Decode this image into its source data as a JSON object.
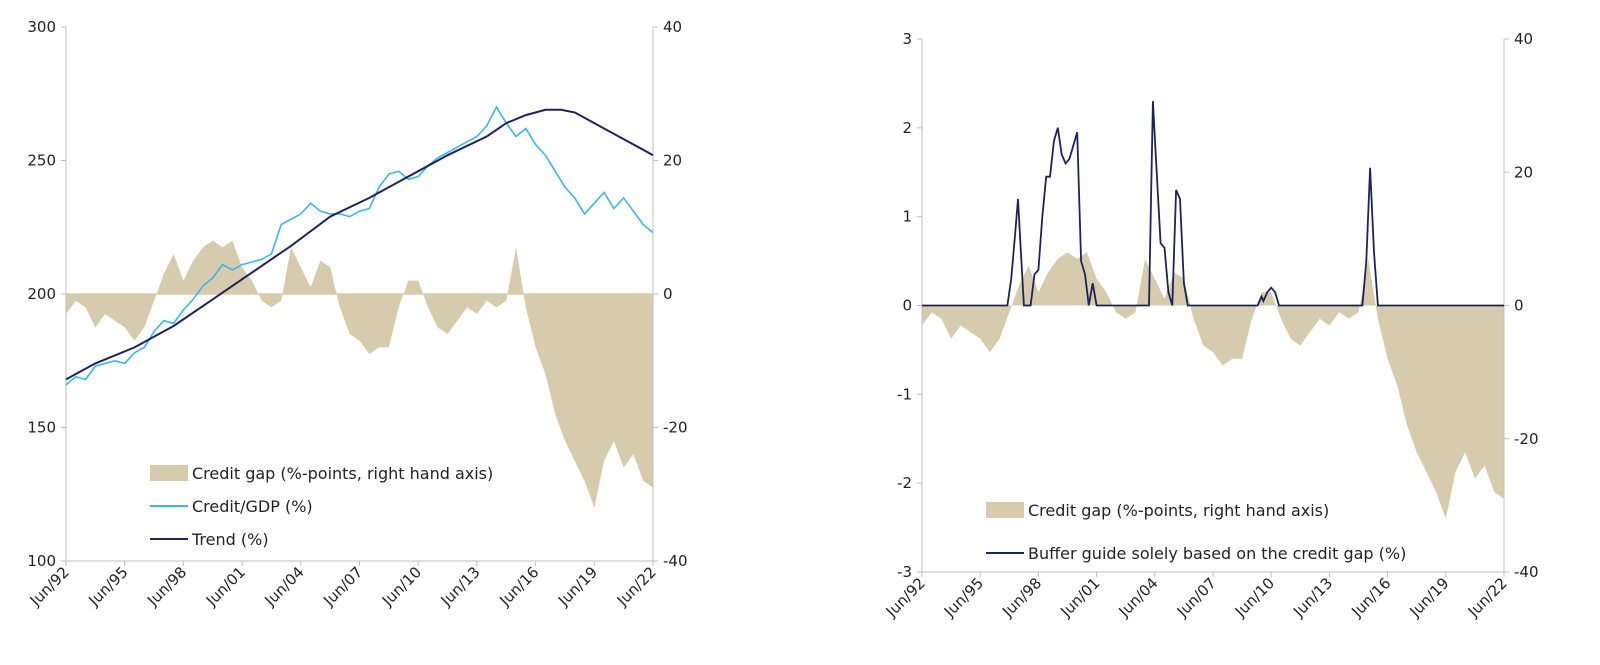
{
  "colors": {
    "gap": "#d6cbac",
    "credit": "#3cb7e4",
    "trend": "#1e2458",
    "axis": "#bfbfbf"
  },
  "chart_data": [
    {
      "type": "line",
      "x_tick_labels": [
        "Jun/92",
        "Jun/95",
        "Jun/98",
        "Jun/01",
        "Jun/04",
        "Jun/07",
        "Jun/10",
        "Jun/13",
        "Jun/16",
        "Jun/19",
        "Jun/22"
      ],
      "x_range": [
        1992.5,
        2022.5
      ],
      "y_left": {
        "ticks": [
          "100",
          "150",
          "200",
          "250",
          "300"
        ],
        "range": [
          100,
          300
        ]
      },
      "y_right": {
        "ticks": [
          "-40",
          "-20",
          "0",
          "20",
          "40"
        ],
        "range": [
          -40,
          40
        ]
      },
      "series": [
        {
          "name": "Credit gap (%-points, right hand axis)",
          "kind": "area",
          "axis": "right",
          "x": [
            1992.5,
            1993,
            1993.5,
            1994,
            1994.5,
            1995,
            1995.5,
            1996,
            1996.5,
            1997,
            1997.5,
            1998,
            1998.5,
            1999,
            1999.5,
            2000,
            2000.5,
            2001,
            2001.5,
            2002,
            2002.5,
            2003,
            2003.5,
            2004,
            2004.5,
            2005,
            2005.5,
            2006,
            2006.5,
            2007,
            2007.5,
            2008,
            2008.5,
            2009,
            2009.5,
            2010,
            2010.5,
            2011,
            2011.5,
            2012,
            2012.5,
            2013,
            2013.5,
            2014,
            2014.5,
            2015,
            2015.5,
            2016,
            2016.5,
            2017,
            2017.5,
            2018,
            2018.5,
            2019,
            2019.5,
            2020,
            2020.5,
            2021,
            2021.5,
            2022,
            2022.5
          ],
          "values": [
            -3,
            -1,
            -2,
            -5,
            -3,
            -4,
            -5,
            -7,
            -5,
            -1,
            3,
            6,
            2,
            5,
            7,
            8,
            7,
            8,
            4,
            2,
            -1,
            -2,
            -1,
            7,
            4,
            1,
            5,
            4,
            -2,
            -6,
            -7,
            -9,
            -8,
            -8,
            -2,
            2,
            2,
            -2,
            -5,
            -6,
            -4,
            -2,
            -3,
            -1,
            -2,
            -1,
            7,
            -2,
            -8,
            -12,
            -18,
            -22,
            -25,
            -28,
            -32,
            -25,
            -22,
            -26,
            -24,
            -28,
            -29
          ]
        },
        {
          "name": "Credit/GDP (%)",
          "kind": "line",
          "axis": "left",
          "x": [
            1992.5,
            1993,
            1993.5,
            1994,
            1994.5,
            1995,
            1995.5,
            1996,
            1996.5,
            1997,
            1997.5,
            1998,
            1998.5,
            1999,
            1999.5,
            2000,
            2000.5,
            2001,
            2001.5,
            2002,
            2002.5,
            2003,
            2003.5,
            2004,
            2004.5,
            2005,
            2005.5,
            2006,
            2006.5,
            2007,
            2007.5,
            2008,
            2008.5,
            2009,
            2009.5,
            2010,
            2010.5,
            2011,
            2011.5,
            2012,
            2012.5,
            2013,
            2013.5,
            2014,
            2014.5,
            2015,
            2015.5,
            2016,
            2016.5,
            2017,
            2017.5,
            2018,
            2018.5,
            2019,
            2019.5,
            2020,
            2020.5,
            2021,
            2021.5,
            2022,
            2022.5
          ],
          "values": [
            166,
            169,
            168,
            173,
            174,
            175,
            174,
            178,
            180,
            186,
            190,
            189,
            194,
            198,
            203,
            206,
            211,
            209,
            211,
            212,
            213,
            215,
            226,
            228,
            230,
            234,
            231,
            230,
            230,
            229,
            231,
            232,
            240,
            245,
            246,
            243,
            244,
            248,
            251,
            253,
            255,
            257,
            259,
            263,
            270,
            264,
            259,
            262,
            256,
            252,
            246,
            240,
            236,
            230,
            234,
            238,
            232,
            236,
            231,
            226,
            223
          ]
        },
        {
          "name": "Trend (%)",
          "kind": "line",
          "axis": "left",
          "x": [
            1992.5,
            1994,
            1996,
            1998,
            2000,
            2002,
            2004,
            2006,
            2008,
            2010,
            2012,
            2014,
            2015,
            2016,
            2017,
            2017.8,
            2018.5,
            2019,
            2020,
            2021,
            2022,
            2022.5
          ],
          "values": [
            168,
            174,
            180,
            188,
            198,
            208,
            218,
            229,
            236,
            244,
            252,
            259,
            264,
            267,
            269,
            269,
            268,
            266,
            262,
            258,
            254,
            252
          ]
        }
      ]
    },
    {
      "type": "line",
      "x_tick_labels": [
        "Jun/92",
        "Jun/95",
        "Jun/98",
        "Jun/01",
        "Jun/04",
        "Jun/07",
        "Jun/10",
        "Jun/13",
        "Jun/16",
        "Jun/19",
        "Jun/22"
      ],
      "x_range": [
        1992.5,
        2022.5
      ],
      "y_left": {
        "ticks": [
          "-3",
          "-2",
          "-1",
          "0",
          "1",
          "2",
          "3"
        ],
        "range": [
          -3,
          3
        ]
      },
      "y_right": {
        "ticks": [
          "-40",
          "-20",
          "0",
          "20",
          "40"
        ],
        "range": [
          -40,
          40
        ]
      },
      "series": [
        {
          "name": "Credit gap (%-points, right hand axis)",
          "kind": "area",
          "axis": "right",
          "x": [
            1992.5,
            1993,
            1993.5,
            1994,
            1994.5,
            1995,
            1995.5,
            1996,
            1996.5,
            1997,
            1997.5,
            1998,
            1998.5,
            1999,
            1999.5,
            2000,
            2000.5,
            2001,
            2001.5,
            2002,
            2002.5,
            2003,
            2003.5,
            2004,
            2004.5,
            2005,
            2005.5,
            2006,
            2006.5,
            2007,
            2007.5,
            2008,
            2008.5,
            2009,
            2009.5,
            2010,
            2010.5,
            2011,
            2011.5,
            2012,
            2012.5,
            2013,
            2013.5,
            2014,
            2014.5,
            2015,
            2015.5,
            2016,
            2016.5,
            2017,
            2017.5,
            2018,
            2018.5,
            2019,
            2019.5,
            2020,
            2020.5,
            2021,
            2021.5,
            2022,
            2022.5
          ],
          "values": [
            -3,
            -1,
            -2,
            -5,
            -3,
            -4,
            -5,
            -7,
            -5,
            -1,
            3,
            6,
            2,
            5,
            7,
            8,
            7,
            8,
            4,
            2,
            -1,
            -2,
            -1,
            7,
            4,
            1,
            5,
            4,
            -2,
            -6,
            -7,
            -9,
            -8,
            -8,
            -2,
            2,
            2,
            -2,
            -5,
            -6,
            -4,
            -2,
            -3,
            -1,
            -2,
            -1,
            7,
            -2,
            -8,
            -12,
            -18,
            -22,
            -25,
            -28,
            -32,
            -25,
            -22,
            -26,
            -24,
            -28,
            -29
          ]
        },
        {
          "name": "Buffer guide solely based on the credit gap (%)",
          "kind": "line",
          "axis": "left",
          "x": [
            1992.5,
            1996.9,
            1997.1,
            1997.3,
            1997.45,
            1997.6,
            1997.75,
            1997.9,
            1998.1,
            1998.3,
            1998.5,
            1998.7,
            1998.9,
            1999.1,
            1999.3,
            1999.5,
            1999.7,
            1999.9,
            2000.1,
            2000.3,
            2000.5,
            2000.7,
            2000.9,
            2001.1,
            2001.3,
            2001.5,
            2001.7,
            2001.9,
            2002.1,
            2002.3,
            2004.2,
            2004.4,
            2004.6,
            2004.8,
            2005.0,
            2005.2,
            2005.4,
            2005.6,
            2005.8,
            2006.0,
            2006.2,
            2006.4,
            2006.6,
            2009.8,
            2010.0,
            2010.1,
            2010.3,
            2010.5,
            2010.7,
            2010.9,
            2015.2,
            2015.4,
            2015.6,
            2015.8,
            2016.0,
            2016.2,
            2022.5
          ],
          "values": [
            0,
            0,
            0.3,
            0.8,
            1.2,
            0.6,
            0,
            0,
            0,
            0.35,
            0.4,
            1.0,
            1.45,
            1.45,
            1.85,
            2.0,
            1.7,
            1.6,
            1.65,
            1.8,
            1.95,
            0.5,
            0.35,
            0,
            0.25,
            0,
            0,
            0,
            0,
            0,
            0,
            2.3,
            1.5,
            0.7,
            0.65,
            0.15,
            0,
            1.3,
            1.2,
            0.25,
            0,
            0,
            0,
            0,
            0.1,
            0.05,
            0.15,
            0.2,
            0.15,
            0,
            0,
            0.5,
            1.55,
            0.6,
            0,
            0,
            0
          ]
        }
      ]
    }
  ]
}
